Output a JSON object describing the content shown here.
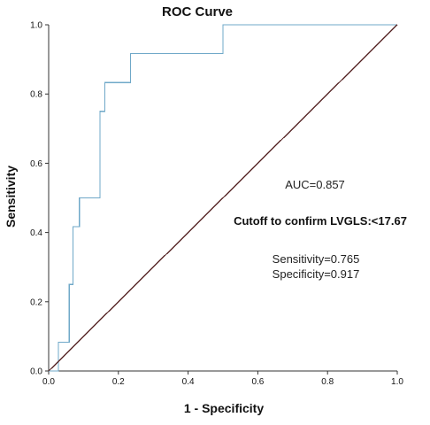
{
  "chart_data": {
    "type": "line",
    "title": "ROC Curve",
    "xlabel": "1 - Specificity",
    "ylabel": "Sensitivity",
    "xlim": [
      0,
      1
    ],
    "ylim": [
      0,
      1
    ],
    "x_ticks": [
      "0.0",
      "0.2",
      "0.4",
      "0.6",
      "0.8",
      "1.0"
    ],
    "y_ticks": [
      "0.0",
      "0.2",
      "0.4",
      "0.6",
      "0.8",
      "1.0"
    ],
    "grid": false,
    "series": [
      {
        "color": "#6fa8c8",
        "step": true,
        "points": [
          [
            0.0,
            0.0
          ],
          [
            0.028,
            0.0
          ],
          [
            0.028,
            0.083
          ],
          [
            0.059,
            0.083
          ],
          [
            0.059,
            0.25
          ],
          [
            0.07,
            0.25
          ],
          [
            0.07,
            0.417
          ],
          [
            0.088,
            0.417
          ],
          [
            0.088,
            0.5
          ],
          [
            0.147,
            0.5
          ],
          [
            0.147,
            0.75
          ],
          [
            0.161,
            0.75
          ],
          [
            0.161,
            0.833
          ],
          [
            0.235,
            0.833
          ],
          [
            0.235,
            0.917
          ],
          [
            0.5,
            0.917
          ],
          [
            0.5,
            1.0
          ],
          [
            1.0,
            1.0
          ]
        ]
      },
      {
        "color": "#5a2a2a",
        "points": [
          [
            0,
            0
          ],
          [
            1,
            1
          ]
        ]
      }
    ],
    "annotations": {
      "auc": "AUC=0.857",
      "cutoff": "Cutoff to confirm LVGLS:<17.67",
      "sensitivity": "Sensitivity=0.765",
      "specificity": "Specificity=0.917"
    }
  }
}
